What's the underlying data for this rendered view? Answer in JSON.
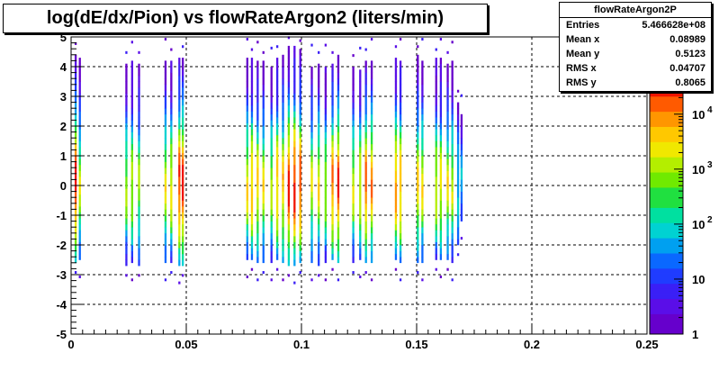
{
  "window": {
    "title": "log(dE/dx/Pion) vs flowRateArgon2 (liters/min)"
  },
  "stats": {
    "name": "flowRateArgon2P",
    "rows": [
      {
        "label": "Entries",
        "value": "5.466628e+08"
      },
      {
        "label": "Mean x",
        "value": "0.08989"
      },
      {
        "label": "Mean y",
        "value": "0.5123"
      },
      {
        "label": "RMS x",
        "value": "0.04707"
      },
      {
        "label": "RMS y",
        "value": "0.8065"
      }
    ]
  },
  "chart_data": {
    "type": "heatmap",
    "title": "log(dE/dx/Pion) vs flowRateArgon2 (liters/min)",
    "xlabel": "",
    "ylabel": "",
    "xlim": [
      0,
      0.25
    ],
    "ylim": [
      -5,
      5
    ],
    "grid": true,
    "z_scale": "log",
    "z_range": [
      1,
      40000
    ],
    "x_ticks": [
      "0",
      "0.05",
      "0.1",
      "0.15",
      "0.2",
      "0.25"
    ],
    "y_ticks": [
      "-5",
      "-4",
      "-3",
      "-2",
      "-1",
      "0",
      "1",
      "2",
      "3",
      "4",
      "5"
    ],
    "z_ticks": [
      "1",
      "10",
      "10",
      "10",
      "10"
    ],
    "z_tick_exponents": [
      "",
      "",
      "2",
      "3",
      "4"
    ],
    "palette": [
      "#6600cc",
      "#5a0ee8",
      "#3a1ff6",
      "#1f3cff",
      "#0a68ff",
      "#00a0f0",
      "#00d2d2",
      "#00e0a0",
      "#20e040",
      "#70ea00",
      "#b4ee00",
      "#f0e800",
      "#ffc800",
      "#ff9600",
      "#ff5a00",
      "#f01400"
    ],
    "columns": [
      {
        "x": 0.002,
        "ymin": -2.6,
        "ymax": 4.4,
        "peak": 0.0,
        "amp": 0.97,
        "w": 1.35
      },
      {
        "x": 0.0038,
        "ymin": -2.5,
        "ymax": 4.3,
        "peak": 0.0,
        "amp": 0.66,
        "w": 1.2
      },
      {
        "x": 0.024,
        "ymin": -2.7,
        "ymax": 4.1,
        "peak": 0.0,
        "amp": 0.63,
        "w": 1.2
      },
      {
        "x": 0.0265,
        "ymin": -2.6,
        "ymax": 4.1,
        "peak": 0.0,
        "amp": 0.67,
        "w": 1.2
      },
      {
        "x": 0.0295,
        "ymin": -2.7,
        "ymax": 4.1,
        "peak": 0.0,
        "amp": 0.61,
        "w": 1.2
      },
      {
        "x": 0.041,
        "ymin": -2.6,
        "ymax": 4.2,
        "peak": 0.0,
        "amp": 0.7,
        "w": 1.25
      },
      {
        "x": 0.0435,
        "ymin": -2.6,
        "ymax": 4.2,
        "peak": 0.0,
        "amp": 0.72,
        "w": 1.25
      },
      {
        "x": 0.047,
        "ymin": -2.7,
        "ymax": 4.3,
        "peak": 0.0,
        "amp": 0.95,
        "w": 1.35
      },
      {
        "x": 0.0485,
        "ymin": -2.7,
        "ymax": 4.3,
        "peak": 0.0,
        "amp": 0.98,
        "w": 1.35
      },
      {
        "x": 0.0765,
        "ymin": -2.5,
        "ymax": 4.2,
        "peak": 0.0,
        "amp": 0.73,
        "w": 1.25
      },
      {
        "x": 0.0785,
        "ymin": -2.5,
        "ymax": 4.2,
        "peak": 0.0,
        "amp": 0.8,
        "w": 1.3
      },
      {
        "x": 0.081,
        "ymin": -2.6,
        "ymax": 4.1,
        "peak": 0.0,
        "amp": 0.75,
        "w": 1.25
      },
      {
        "x": 0.0835,
        "ymin": -2.6,
        "ymax": 4.1,
        "peak": 0.0,
        "amp": 0.7,
        "w": 1.2
      },
      {
        "x": 0.087,
        "ymin": -2.6,
        "ymax": 3.9,
        "peak": 0.0,
        "amp": 0.65,
        "w": 1.2
      },
      {
        "x": 0.0895,
        "ymin": -2.5,
        "ymax": 4.3,
        "peak": 0.0,
        "amp": 0.8,
        "w": 1.3
      },
      {
        "x": 0.092,
        "ymin": -2.6,
        "ymax": 4.3,
        "peak": 0.0,
        "amp": 0.78,
        "w": 1.3
      },
      {
        "x": 0.0945,
        "ymin": -2.7,
        "ymax": 4.6,
        "peak": 0.0,
        "amp": 0.97,
        "w": 1.4
      },
      {
        "x": 0.097,
        "ymin": -2.7,
        "ymax": 4.6,
        "peak": 0.0,
        "amp": 0.99,
        "w": 1.4
      },
      {
        "x": 0.0995,
        "ymin": -2.6,
        "ymax": 4.5,
        "peak": 0.0,
        "amp": 0.93,
        "w": 1.35
      },
      {
        "x": 0.1045,
        "ymin": -2.6,
        "ymax": 4.0,
        "peak": 0.0,
        "amp": 0.67,
        "w": 1.2
      },
      {
        "x": 0.1075,
        "ymin": -2.7,
        "ymax": 4.1,
        "peak": 0.0,
        "amp": 0.72,
        "w": 1.25
      },
      {
        "x": 0.1105,
        "ymin": -2.6,
        "ymax": 4.0,
        "peak": 0.0,
        "amp": 0.65,
        "w": 1.2
      },
      {
        "x": 0.1135,
        "ymin": -2.5,
        "ymax": 4.1,
        "peak": 0.0,
        "amp": 0.88,
        "w": 1.3
      },
      {
        "x": 0.116,
        "ymin": -2.6,
        "ymax": 4.3,
        "peak": 0.0,
        "amp": 0.95,
        "w": 1.35
      },
      {
        "x": 0.1225,
        "ymin": -2.6,
        "ymax": 4.0,
        "peak": 0.0,
        "amp": 0.68,
        "w": 1.2
      },
      {
        "x": 0.1255,
        "ymin": -2.5,
        "ymax": 3.9,
        "peak": 0.0,
        "amp": 0.72,
        "w": 1.2
      },
      {
        "x": 0.128,
        "ymin": -2.6,
        "ymax": 4.2,
        "peak": 0.0,
        "amp": 0.9,
        "w": 1.3
      },
      {
        "x": 0.1305,
        "ymin": -2.6,
        "ymax": 4.2,
        "peak": 0.0,
        "amp": 0.85,
        "w": 1.3
      },
      {
        "x": 0.141,
        "ymin": -2.5,
        "ymax": 4.3,
        "peak": 0.0,
        "amp": 0.85,
        "w": 1.3
      },
      {
        "x": 0.143,
        "ymin": -2.6,
        "ymax": 4.2,
        "peak": 0.0,
        "amp": 0.82,
        "w": 1.3
      },
      {
        "x": 0.1505,
        "ymin": -2.6,
        "ymax": 4.3,
        "peak": 0.0,
        "amp": 0.75,
        "w": 1.25
      },
      {
        "x": 0.1525,
        "ymin": -2.6,
        "ymax": 4.2,
        "peak": 0.0,
        "amp": 0.72,
        "w": 1.25
      },
      {
        "x": 0.1585,
        "ymin": -2.5,
        "ymax": 4.2,
        "peak": 0.0,
        "amp": 0.7,
        "w": 1.2
      },
      {
        "x": 0.1605,
        "ymin": -2.5,
        "ymax": 4.2,
        "peak": 0.0,
        "amp": 0.72,
        "w": 1.2
      },
      {
        "x": 0.1635,
        "ymin": -2.5,
        "ymax": 4.1,
        "peak": 0.0,
        "amp": 0.7,
        "w": 1.2
      },
      {
        "x": 0.1655,
        "ymin": -2.6,
        "ymax": 4.1,
        "peak": 0.0,
        "amp": 0.66,
        "w": 1.2
      },
      {
        "x": 0.168,
        "ymin": -2.0,
        "ymax": 2.8,
        "peak": 0.0,
        "amp": 0.42,
        "w": 1.1
      },
      {
        "x": 0.1695,
        "ymin": -1.2,
        "ymax": 2.3,
        "peak": 0.0,
        "amp": 0.35,
        "w": 1.0
      }
    ]
  }
}
